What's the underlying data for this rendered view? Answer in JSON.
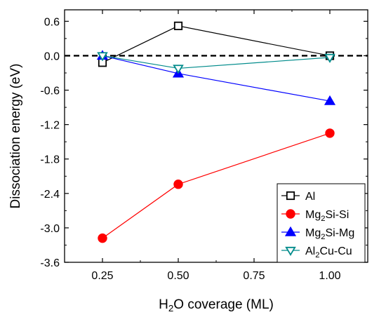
{
  "chart_data": {
    "type": "line",
    "xlabel_parts": [
      {
        "text": "H"
      },
      {
        "text": "2",
        "sub": true
      },
      {
        "text": "O coverage (ML)"
      }
    ],
    "ylabel": "Dissociation energy (eV)",
    "xlim": [
      0.125,
      1.125
    ],
    "ylim": [
      -3.6,
      0.8
    ],
    "xticks": [
      0.25,
      0.5,
      0.75,
      1.0
    ],
    "xtick_labels": [
      "0.25",
      "0.50",
      "0.75",
      "1.00"
    ],
    "yticks": [
      0.6,
      0.0,
      -0.6,
      -1.2,
      -1.8,
      -2.4,
      -3.0,
      -3.6
    ],
    "ytick_labels": [
      "0.6",
      "0.0",
      "-0.6",
      "-1.2",
      "-1.8",
      "-2.4",
      "-3.0",
      "-3.6"
    ],
    "reference_line": {
      "y": 0.0,
      "style": "dashed",
      "color": "#000000"
    },
    "grid": false,
    "legend_position": "bottom-right",
    "series": [
      {
        "name": "Al",
        "name_parts": [
          {
            "text": "Al"
          }
        ],
        "color": "#000000",
        "marker": "open-square",
        "x": [
          0.25,
          0.5,
          1.0
        ],
        "y": [
          -0.12,
          0.52,
          0.0
        ]
      },
      {
        "name": "Mg2Si-Si",
        "name_parts": [
          {
            "text": "Mg"
          },
          {
            "text": "2",
            "sub": true
          },
          {
            "text": "Si-Si"
          }
        ],
        "color": "#ff0000",
        "marker": "filled-circle",
        "x": [
          0.25,
          0.5,
          1.0
        ],
        "y": [
          -3.18,
          -2.24,
          -1.35
        ]
      },
      {
        "name": "Mg2Si-Mg",
        "name_parts": [
          {
            "text": "Mg"
          },
          {
            "text": "2",
            "sub": true
          },
          {
            "text": "Si-Mg"
          }
        ],
        "color": "#0000ff",
        "marker": "filled-triangle-up",
        "x": [
          0.25,
          0.5,
          1.0
        ],
        "y": [
          0.0,
          -0.31,
          -0.79
        ]
      },
      {
        "name": "Al2Cu-Cu",
        "name_parts": [
          {
            "text": "Al"
          },
          {
            "text": "2",
            "sub": true
          },
          {
            "text": "Cu-Cu"
          }
        ],
        "color": "#008b8b",
        "marker": "open-triangle-down",
        "x": [
          0.25,
          0.5,
          1.0
        ],
        "y": [
          0.0,
          -0.22,
          -0.03
        ]
      }
    ]
  }
}
